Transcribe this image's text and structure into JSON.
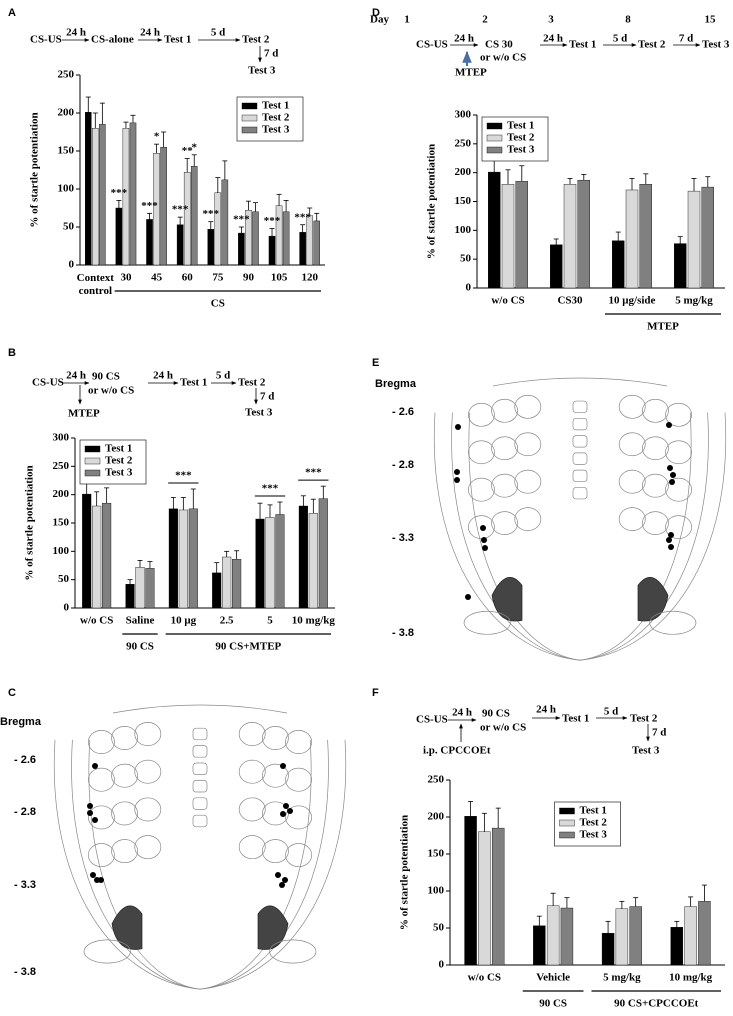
{
  "panel_labels": [
    "A",
    "B",
    "C",
    "D",
    "E",
    "F"
  ],
  "timelines": {
    "A": {
      "steps": [
        "CS-US",
        "CS-alone",
        "Test 1",
        "Test 2",
        "Test 3"
      ],
      "intervals": [
        "24 h",
        "24 h",
        "5 d",
        "7 d"
      ]
    },
    "B": {
      "steps": [
        "CS-US",
        [
          "90 CS",
          "or w/o CS"
        ],
        "Test 1",
        "Test 2",
        "Test 3"
      ],
      "intervals": [
        "24 h",
        "24 h",
        "5 d",
        "7 d"
      ],
      "drug": "MTEP"
    },
    "D": {
      "days_label": "Day",
      "days": [
        "1",
        "2",
        "3",
        "8",
        "15"
      ],
      "steps": [
        "CS-US",
        [
          "CS 30",
          "or w/o CS"
        ],
        "Test 1",
        "Test 2",
        "Test 3"
      ],
      "intervals": [
        "24 h",
        "24 h",
        "5 d",
        "7 d"
      ],
      "drug": "MTEP"
    },
    "F": {
      "steps": [
        "CS-US",
        [
          "90 CS",
          "or w/o CS"
        ],
        "Test 1",
        "Test 2",
        "Test 3"
      ],
      "intervals": [
        "24 h",
        "24 h",
        "5 d",
        "7 d"
      ],
      "drug": "i.p. CPCCOEt"
    }
  },
  "atlases": {
    "C": {
      "title": "Bregma",
      "levels": [
        "- 2.6",
        "- 2.8",
        "- 3.3",
        "- 3.8"
      ]
    },
    "E": {
      "title": "Bregma",
      "levels": [
        "- 2.6",
        "- 2.8",
        "- 3.3",
        "- 3.8"
      ]
    }
  },
  "chart_data": [
    {
      "type": "bar",
      "ylabel": "% of startle potentiation",
      "ylim": [
        0,
        250
      ],
      "yticks": [
        0,
        50,
        100,
        150,
        200,
        250
      ],
      "legend": "upper right",
      "categories": [
        "Context control",
        "30",
        "45",
        "60",
        "75",
        "90",
        "105",
        "120"
      ],
      "groups": [
        {
          "label": "CS",
          "from": "30",
          "to": "120"
        }
      ],
      "series": [
        {
          "name": "Test 1",
          "color": "#000000",
          "values": [
            201,
            75,
            60,
            53,
            47,
            42,
            38,
            43
          ],
          "errors": [
            20,
            10,
            8,
            10,
            10,
            8,
            10,
            10
          ]
        },
        {
          "name": "Test 2",
          "color": "#d9d9d9",
          "values": [
            180,
            180,
            147,
            122,
            95,
            72,
            78,
            65
          ],
          "errors": [
            20,
            8,
            12,
            18,
            20,
            12,
            15,
            10
          ]
        },
        {
          "name": "Test 3",
          "color": "#808080",
          "values": [
            185,
            187,
            155,
            130,
            112,
            70,
            70,
            58
          ],
          "errors": [
            28,
            10,
            20,
            15,
            25,
            12,
            15,
            10
          ]
        }
      ],
      "annotations": [
        {
          "text": "***",
          "category": "30",
          "series": "Test 1"
        },
        {
          "text": "***",
          "category": "45",
          "series": "Test 1"
        },
        {
          "text": "***",
          "category": "60",
          "series": "Test 1"
        },
        {
          "text": "***",
          "category": "75",
          "series": "Test 1"
        },
        {
          "text": "***",
          "category": "90",
          "series": "Test 1"
        },
        {
          "text": "***",
          "category": "105",
          "series": "Test 1"
        },
        {
          "text": "***",
          "category": "120",
          "series": "Test 1"
        },
        {
          "text": "*",
          "category": "45",
          "series": "Test 2"
        },
        {
          "text": "**",
          "category": "60",
          "series": "Test 2"
        },
        {
          "text": "*",
          "category": "60",
          "series": "Test 3"
        }
      ]
    },
    {
      "type": "bar",
      "ylabel": "% of startle potentiation",
      "ylim": [
        0,
        300
      ],
      "yticks": [
        0,
        50,
        100,
        150,
        200,
        250,
        300
      ],
      "legend": "upper left",
      "categories": [
        "w/o CS",
        "Saline",
        "10 μg",
        "2.5",
        "5",
        "10 mg/kg"
      ],
      "groups": [
        {
          "label": "90 CS",
          "from": "Saline",
          "to": "Saline"
        },
        {
          "label": "90 CS+MTEP",
          "from": "10 μg",
          "to": "10 mg/kg"
        }
      ],
      "series": [
        {
          "name": "Test 1",
          "color": "#000000",
          "values": [
            201,
            42,
            175,
            62,
            157,
            180
          ],
          "errors": [
            20,
            8,
            20,
            18,
            28,
            18
          ]
        },
        {
          "name": "Test 2",
          "color": "#d9d9d9",
          "values": [
            180,
            72,
            173,
            90,
            160,
            167
          ],
          "errors": [
            25,
            12,
            22,
            10,
            22,
            25
          ]
        },
        {
          "name": "Test 3",
          "color": "#808080",
          "values": [
            185,
            70,
            175,
            86,
            165,
            193
          ],
          "errors": [
            27,
            12,
            35,
            15,
            22,
            22
          ]
        }
      ],
      "annotations": [
        {
          "text": "***",
          "category": "10 μg"
        },
        {
          "text": "***",
          "category": "5"
        },
        {
          "text": "***",
          "category": "10 mg/kg"
        }
      ]
    },
    {
      "type": "bar",
      "ylabel": "% of startle potentiation",
      "ylim": [
        0,
        300
      ],
      "yticks": [
        0,
        50,
        100,
        150,
        200,
        250,
        300
      ],
      "legend": "upper left",
      "categories": [
        "w/o CS",
        "CS30",
        "10 μg/side",
        "5 mg/kg"
      ],
      "groups": [
        {
          "label": "MTEP",
          "from": "10 μg/side",
          "to": "5 mg/kg"
        }
      ],
      "series": [
        {
          "name": "Test 1",
          "color": "#000000",
          "values": [
            201,
            75,
            82,
            77
          ],
          "errors": [
            20,
            10,
            15,
            12
          ]
        },
        {
          "name": "Test 2",
          "color": "#d9d9d9",
          "values": [
            180,
            180,
            170,
            168
          ],
          "errors": [
            25,
            10,
            20,
            22
          ]
        },
        {
          "name": "Test 3",
          "color": "#808080",
          "values": [
            185,
            187,
            180,
            175
          ],
          "errors": [
            27,
            10,
            18,
            18
          ]
        }
      ]
    },
    {
      "type": "bar",
      "ylabel": "% of startle potentiation",
      "ylim": [
        0,
        250
      ],
      "yticks": [
        0,
        50,
        100,
        150,
        200,
        250
      ],
      "legend": "upper center",
      "categories": [
        "w/o CS",
        "Vehicle",
        "5 mg/kg",
        "10 mg/kg"
      ],
      "groups": [
        {
          "label": "90 CS",
          "from": "Vehicle",
          "to": "Vehicle"
        },
        {
          "label": "90 CS+CPCCOEt",
          "from": "5 mg/kg",
          "to": "10 mg/kg"
        }
      ],
      "series": [
        {
          "name": "Test 1",
          "color": "#000000",
          "values": [
            201,
            53,
            43,
            51
          ],
          "errors": [
            20,
            13,
            16,
            8
          ]
        },
        {
          "name": "Test 2",
          "color": "#d9d9d9",
          "values": [
            180,
            80,
            76,
            79
          ],
          "errors": [
            25,
            17,
            10,
            13
          ]
        },
        {
          "name": "Test 3",
          "color": "#808080",
          "values": [
            185,
            77,
            79,
            86
          ],
          "errors": [
            27,
            14,
            12,
            22
          ]
        }
      ]
    }
  ]
}
